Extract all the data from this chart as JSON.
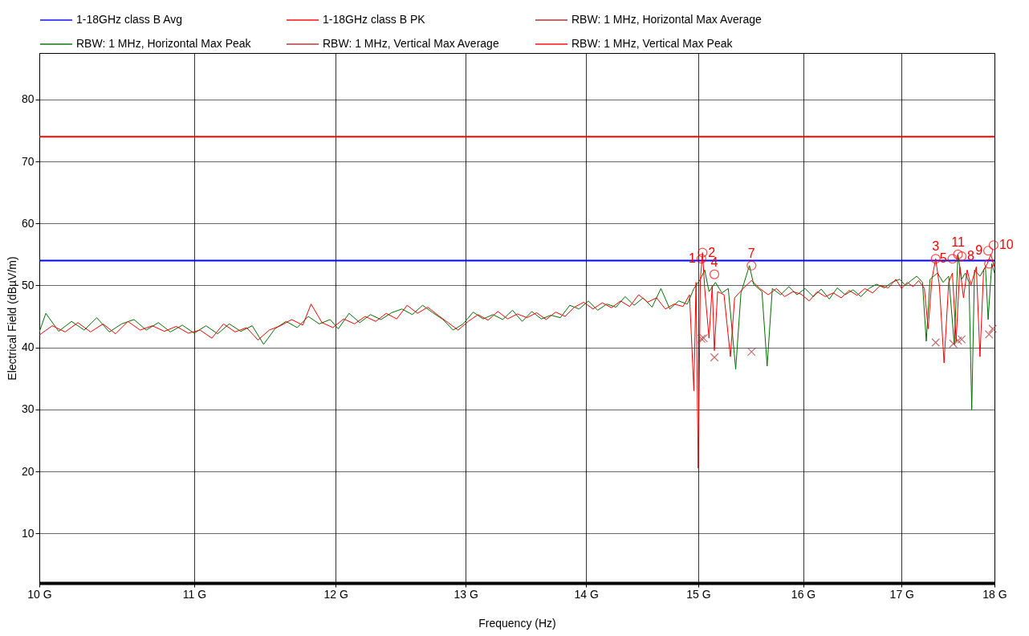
{
  "chart_data": {
    "type": "line",
    "xlabel": "Frequency (Hz)",
    "ylabel": "Electrical Field (dBµV/m)",
    "log": "x",
    "grid": true,
    "legend": "top",
    "xlim": [
      10,
      18
    ],
    "xticks": [
      {
        "value": 10,
        "label": "10 G"
      },
      {
        "value": 11,
        "label": "11 G"
      },
      {
        "value": 12,
        "label": "12 G"
      },
      {
        "value": 13,
        "label": "13 G"
      },
      {
        "value": 14,
        "label": "14 G"
      },
      {
        "value": 15,
        "label": "15 G"
      },
      {
        "value": 16,
        "label": "16 G"
      },
      {
        "value": 17,
        "label": "17 G"
      },
      {
        "value": 18,
        "label": "18 G"
      }
    ],
    "ylim": [
      2,
      87.5
    ],
    "yticks": [
      10,
      20,
      30,
      40,
      50,
      60,
      70,
      80
    ],
    "series": [
      {
        "name": "1-18GHz class B Avg",
        "color": "#0000ff",
        "x": [
          10,
          18
        ],
        "values": [
          54,
          54
        ]
      },
      {
        "name": "1-18GHz class B PK",
        "color": "#ff0000",
        "x": [
          10,
          18
        ],
        "values": [
          74,
          74
        ]
      },
      {
        "name": "RBW: 1 MHz, Horizontal Max Average",
        "color": "#a52a2a"
      },
      {
        "name": "RBW: 1 MHz, Horizontal Max Peak",
        "color": "#007000",
        "x": [
          10.0,
          10.04,
          10.12,
          10.2,
          10.28,
          10.36,
          10.44,
          10.52,
          10.6,
          10.68,
          10.76,
          10.84,
          10.92,
          11.0,
          11.08,
          11.16,
          11.24,
          11.32,
          11.4,
          11.48,
          11.56,
          11.64,
          11.72,
          11.8,
          11.88,
          11.96,
          12.02,
          12.1,
          12.18,
          12.26,
          12.34,
          12.42,
          12.5,
          12.58,
          12.66,
          12.74,
          12.82,
          12.9,
          12.98,
          13.06,
          13.14,
          13.22,
          13.3,
          13.38,
          13.46,
          13.54,
          13.62,
          13.7,
          13.78,
          13.86,
          13.94,
          14.02,
          14.1,
          14.18,
          14.26,
          14.34,
          14.42,
          14.5,
          14.58,
          14.66,
          14.74,
          14.82,
          14.9,
          14.96,
          15.02,
          15.06,
          15.1,
          15.16,
          15.22,
          15.28,
          15.35,
          15.4,
          15.48,
          15.52,
          15.6,
          15.65,
          15.7,
          15.78,
          15.86,
          15.94,
          16.02,
          16.1,
          16.18,
          16.26,
          16.34,
          16.42,
          16.5,
          16.58,
          16.66,
          16.74,
          16.82,
          16.9,
          16.98,
          17.04,
          17.1,
          17.16,
          17.22,
          17.26,
          17.3,
          17.38,
          17.44,
          17.5,
          17.56,
          17.6,
          17.64,
          17.68,
          17.72,
          17.75,
          17.78,
          17.84,
          17.9,
          17.93,
          17.97,
          18.0
        ],
        "values": [
          42.5,
          45.5,
          42.6,
          44.2,
          42.8,
          44.8,
          42.5,
          43.8,
          44.5,
          42.8,
          44,
          42.5,
          43.6,
          42.3,
          43.5,
          42.2,
          43.8,
          42.6,
          43.5,
          40.5,
          43,
          44.2,
          43.2,
          45,
          43.8,
          44.5,
          43,
          45.5,
          44,
          45.3,
          44.5,
          45.6,
          46.2,
          45.3,
          46.8,
          45.6,
          44.5,
          42.8,
          43.8,
          45.7,
          44.6,
          45.3,
          44.5,
          46,
          44.2,
          45.8,
          44.6,
          45.2,
          44.8,
          46.8,
          46.2,
          47.5,
          46,
          47,
          46.5,
          48.2,
          46.8,
          48,
          46.5,
          49.5,
          46.2,
          47.5,
          47,
          49.5,
          51,
          52.5,
          49,
          50.5,
          48.8,
          49.5,
          36.5,
          48.8,
          53.2,
          50.2,
          49,
          37,
          49.5,
          48.5,
          49.8,
          48.5,
          49.5,
          48.2,
          49.4,
          47.8,
          49.6,
          48.5,
          49.3,
          48.2,
          49.5,
          50.2,
          49.6,
          50.5,
          51,
          50,
          50.8,
          51.5,
          50.5,
          41,
          51,
          52,
          50.5,
          51.5,
          40.5,
          55,
          51,
          52,
          50.5,
          30,
          52.5,
          51.5,
          53,
          44.5,
          53.5,
          52
        ]
      },
      {
        "name": "RBW: 1 MHz, Vertical Max Average",
        "color": "#a83232",
        "type": "scatter",
        "marker": "cross",
        "x": [
          15.03,
          15.05,
          15.15,
          15.5,
          17.36,
          17.55,
          17.6,
          17.64,
          17.94,
          17.98
        ],
        "values": [
          41.4,
          41.5,
          38.4,
          39.3,
          40.8,
          40.6,
          41.1,
          41.3,
          42.1,
          43.0
        ]
      },
      {
        "name": "RBW: 1 MHz, Vertical Max Peak",
        "color": "#ff0000",
        "x": [
          10.0,
          10.08,
          10.16,
          10.24,
          10.32,
          10.4,
          10.48,
          10.56,
          10.64,
          10.72,
          10.8,
          10.88,
          10.96,
          11.04,
          11.12,
          11.2,
          11.28,
          11.36,
          11.44,
          11.52,
          11.6,
          11.68,
          11.76,
          11.82,
          11.9,
          11.98,
          12.06,
          12.14,
          12.22,
          12.3,
          12.38,
          12.46,
          12.54,
          12.62,
          12.7,
          12.78,
          12.86,
          12.94,
          13.02,
          13.1,
          13.18,
          13.26,
          13.34,
          13.42,
          13.5,
          13.58,
          13.66,
          13.74,
          13.82,
          13.9,
          13.98,
          14.06,
          14.14,
          14.22,
          14.3,
          14.38,
          14.46,
          14.54,
          14.62,
          14.7,
          14.78,
          14.86,
          14.92,
          14.96,
          14.98,
          15.0,
          15.02,
          15.04,
          15.06,
          15.1,
          15.13,
          15.15,
          15.18,
          15.24,
          15.3,
          15.34,
          15.42,
          15.5,
          15.58,
          15.66,
          15.74,
          15.82,
          15.9,
          15.98,
          16.06,
          16.14,
          16.22,
          16.3,
          16.38,
          16.46,
          16.54,
          16.62,
          16.7,
          16.78,
          16.86,
          16.94,
          17.0,
          17.06,
          17.12,
          17.18,
          17.24,
          17.28,
          17.32,
          17.36,
          17.4,
          17.45,
          17.5,
          17.54,
          17.58,
          17.62,
          17.66,
          17.7,
          17.74,
          17.8,
          17.84,
          17.88,
          17.92,
          17.96,
          18.0
        ],
        "values": [
          42,
          43.5,
          42.5,
          44,
          42.5,
          43.8,
          42.2,
          44.2,
          42.8,
          43.5,
          42.6,
          43.4,
          42.3,
          42.8,
          41.5,
          43.8,
          42.5,
          43.2,
          41.2,
          42.8,
          43.5,
          44.5,
          43.6,
          47,
          44,
          43.2,
          44.6,
          43.8,
          45,
          44.2,
          45.5,
          44.6,
          46.8,
          45.5,
          46.5,
          45.2,
          44,
          42.8,
          44.2,
          45.3,
          44.4,
          45.8,
          44.6,
          45.4,
          44.8,
          45.6,
          44.5,
          45.7,
          45,
          46.5,
          47.3,
          46.2,
          47.2,
          46.4,
          47.5,
          46.6,
          48.5,
          47.3,
          48,
          46.2,
          47,
          46.6,
          48.5,
          33,
          50.5,
          20.5,
          51,
          55.3,
          49.5,
          41.5,
          50,
          39.5,
          49,
          48.5,
          38.5,
          48,
          49.5,
          50.8,
          49.5,
          48.5,
          49.5,
          48.2,
          49,
          48.6,
          47.5,
          49,
          48.2,
          48.8,
          48,
          49.2,
          48.4,
          49.5,
          48.8,
          50,
          49.6,
          51,
          49.5,
          50.5,
          49.8,
          50.8,
          49.5,
          43,
          51,
          54.3,
          50,
          37.5,
          50.5,
          52,
          41,
          53,
          48,
          52.5,
          50,
          53,
          38.5,
          52.5,
          53.5,
          55,
          53
        ]
      },
      {
        "color": "#ff0000",
        "type": "scatter",
        "marker": "circle",
        "x": [
          15.03,
          15.04,
          15.15,
          15.5,
          17.36,
          17.54,
          17.6,
          17.64,
          17.93,
          17.94,
          17.99
        ],
        "values": [
          54.3,
          55.3,
          51.8,
          53.2,
          54.3,
          54.3,
          55.0,
          54.7,
          55.6,
          53.5,
          56.5
        ]
      }
    ],
    "annotations": [
      {
        "text": "1",
        "x": 15.03,
        "y": 54.3
      },
      {
        "text": "2",
        "x": 15.04,
        "y": 55.3
      },
      {
        "text": "4",
        "x": 15.15,
        "y": 51.8
      },
      {
        "text": "7",
        "x": 15.5,
        "y": 53.2
      },
      {
        "text": "3",
        "x": 17.36,
        "y": 54.3
      },
      {
        "text": "5",
        "x": 17.54,
        "y": 54.3
      },
      {
        "text": "11",
        "x": 17.6,
        "y": 55.0
      },
      {
        "text": "8",
        "x": 17.64,
        "y": 54.7
      },
      {
        "text": "9",
        "x": 17.93,
        "y": 55.6
      },
      {
        "text": "10",
        "x": 17.99,
        "y": 56.5
      }
    ]
  }
}
